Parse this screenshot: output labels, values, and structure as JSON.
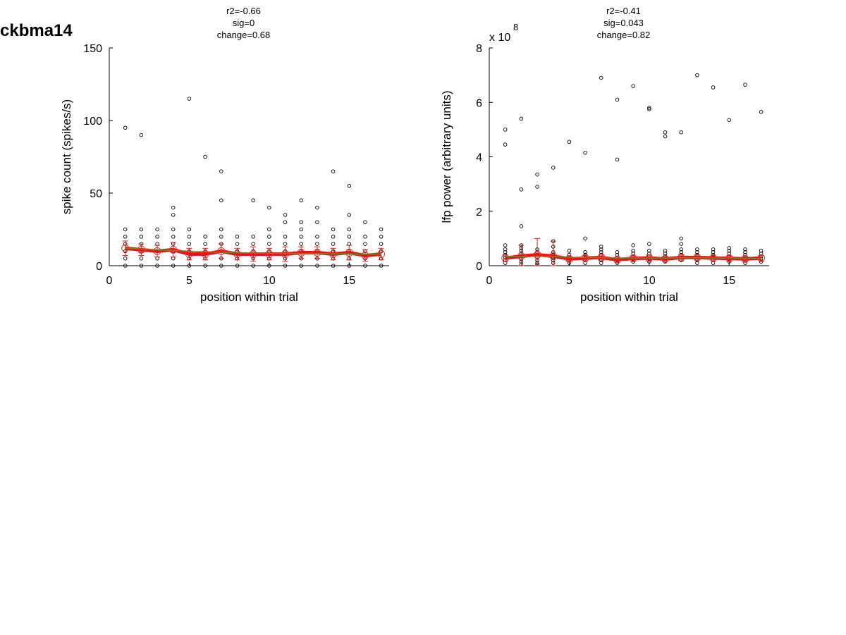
{
  "figure_title": "ckbma14",
  "chart_data": [
    {
      "type": "scatter",
      "stats": [
        "r2=-0.66",
        "sig=0",
        "change=0.68"
      ],
      "xlabel": "position within trial",
      "ylabel": "spike count (spikes/s)",
      "xlim": [
        0,
        17.5
      ],
      "ylim": [
        0,
        150
      ],
      "xticks": [
        0,
        5,
        10,
        15
      ],
      "yticks": [
        0,
        50,
        100,
        150
      ],
      "exponent_label": "",
      "scatter": [
        [
          1,
          95
        ],
        [
          1,
          25
        ],
        [
          1,
          20
        ],
        [
          1,
          15
        ],
        [
          1,
          10
        ],
        [
          1,
          5
        ],
        [
          1,
          0
        ],
        [
          2,
          90
        ],
        [
          2,
          25
        ],
        [
          2,
          20
        ],
        [
          2,
          15
        ],
        [
          2,
          10
        ],
        [
          2,
          5
        ],
        [
          2,
          0
        ],
        [
          3,
          25
        ],
        [
          3,
          20
        ],
        [
          3,
          15
        ],
        [
          3,
          10
        ],
        [
          3,
          5
        ],
        [
          3,
          0
        ],
        [
          4,
          40
        ],
        [
          4,
          35
        ],
        [
          4,
          25
        ],
        [
          4,
          20
        ],
        [
          4,
          15
        ],
        [
          4,
          10
        ],
        [
          4,
          5
        ],
        [
          4,
          0
        ],
        [
          5,
          115
        ],
        [
          5,
          25
        ],
        [
          5,
          20
        ],
        [
          5,
          15
        ],
        [
          5,
          10
        ],
        [
          5,
          5
        ],
        [
          5,
          0
        ],
        [
          6,
          75
        ],
        [
          6,
          20
        ],
        [
          6,
          15
        ],
        [
          6,
          10
        ],
        [
          6,
          5
        ],
        [
          6,
          0
        ],
        [
          7,
          65
        ],
        [
          7,
          45
        ],
        [
          7,
          25
        ],
        [
          7,
          20
        ],
        [
          7,
          15
        ],
        [
          7,
          10
        ],
        [
          7,
          5
        ],
        [
          7,
          0
        ],
        [
          8,
          20
        ],
        [
          8,
          15
        ],
        [
          8,
          10
        ],
        [
          8,
          5
        ],
        [
          8,
          0
        ],
        [
          9,
          45
        ],
        [
          9,
          20
        ],
        [
          9,
          15
        ],
        [
          9,
          10
        ],
        [
          9,
          5
        ],
        [
          9,
          0
        ],
        [
          10,
          40
        ],
        [
          10,
          25
        ],
        [
          10,
          20
        ],
        [
          10,
          15
        ],
        [
          10,
          10
        ],
        [
          10,
          5
        ],
        [
          10,
          0
        ],
        [
          11,
          35
        ],
        [
          11,
          30
        ],
        [
          11,
          20
        ],
        [
          11,
          15
        ],
        [
          11,
          10
        ],
        [
          11,
          5
        ],
        [
          11,
          0
        ],
        [
          12,
          45
        ],
        [
          12,
          30
        ],
        [
          12,
          25
        ],
        [
          12,
          20
        ],
        [
          12,
          15
        ],
        [
          12,
          10
        ],
        [
          12,
          5
        ],
        [
          12,
          0
        ],
        [
          13,
          40
        ],
        [
          13,
          30
        ],
        [
          13,
          20
        ],
        [
          13,
          15
        ],
        [
          13,
          10
        ],
        [
          13,
          5
        ],
        [
          13,
          0
        ],
        [
          14,
          65
        ],
        [
          14,
          25
        ],
        [
          14,
          20
        ],
        [
          14,
          15
        ],
        [
          14,
          10
        ],
        [
          14,
          5
        ],
        [
          14,
          0
        ],
        [
          15,
          55
        ],
        [
          15,
          35
        ],
        [
          15,
          25
        ],
        [
          15,
          20
        ],
        [
          15,
          15
        ],
        [
          15,
          10
        ],
        [
          15,
          5
        ],
        [
          15,
          0
        ],
        [
          16,
          30
        ],
        [
          16,
          20
        ],
        [
          16,
          15
        ],
        [
          16,
          10
        ],
        [
          16,
          5
        ],
        [
          16,
          0
        ],
        [
          17,
          25
        ],
        [
          17,
          20
        ],
        [
          17,
          15
        ],
        [
          17,
          10
        ],
        [
          17,
          5
        ],
        [
          17,
          0
        ]
      ],
      "x": [
        1,
        2,
        3,
        4,
        5,
        6,
        7,
        8,
        9,
        10,
        11,
        12,
        13,
        14,
        15,
        16,
        17
      ],
      "mean": [
        12,
        11,
        10,
        11,
        8,
        8,
        10,
        8,
        8,
        8,
        8,
        9,
        9,
        8,
        9,
        7,
        8
      ],
      "err": [
        5,
        4,
        4,
        5,
        4,
        4,
        5,
        4,
        5,
        4,
        5,
        4,
        4,
        4,
        5,
        4,
        4
      ],
      "fit": [
        12.2,
        11.6,
        11.0,
        10.5,
        10.0,
        9.6,
        9.3,
        9.0,
        8.8,
        8.6,
        8.5,
        8.4,
        8.3,
        8.2,
        8.1,
        8.0,
        8.0
      ]
    },
    {
      "type": "scatter",
      "stats": [
        "r2=-0.41",
        "sig=0.043",
        "change=0.82"
      ],
      "xlabel": "position within trial",
      "ylabel": "lfp power (arbitrary units)",
      "xlim": [
        0,
        17.5
      ],
      "ylim": [
        0,
        8
      ],
      "xticks": [
        0,
        5,
        10,
        15
      ],
      "yticks": [
        0,
        2,
        4,
        6,
        8
      ],
      "exponent_label": "x 10",
      "exponent_power": "8",
      "scatter": [
        [
          1,
          5.0
        ],
        [
          1,
          4.45
        ],
        [
          1,
          0.75
        ],
        [
          1,
          0.6
        ],
        [
          1,
          0.5
        ],
        [
          1,
          0.4
        ],
        [
          1,
          0.3
        ],
        [
          1,
          0.2
        ],
        [
          1,
          0.1
        ],
        [
          2,
          5.4
        ],
        [
          2,
          2.8
        ],
        [
          2,
          1.45
        ],
        [
          2,
          0.75
        ],
        [
          2,
          0.65
        ],
        [
          2,
          0.55
        ],
        [
          2,
          0.45
        ],
        [
          2,
          0.35
        ],
        [
          2,
          0.25
        ],
        [
          2,
          0.15
        ],
        [
          2,
          0.05
        ],
        [
          3,
          3.35
        ],
        [
          3,
          2.9
        ],
        [
          3,
          0.6
        ],
        [
          3,
          0.5
        ],
        [
          3,
          0.4
        ],
        [
          3,
          0.3
        ],
        [
          3,
          0.2
        ],
        [
          3,
          0.1
        ],
        [
          3,
          0.05
        ],
        [
          4,
          3.6
        ],
        [
          4,
          0.9
        ],
        [
          4,
          0.7
        ],
        [
          4,
          0.5
        ],
        [
          4,
          0.4
        ],
        [
          4,
          0.3
        ],
        [
          4,
          0.2
        ],
        [
          4,
          0.1
        ],
        [
          5,
          4.55
        ],
        [
          5,
          0.55
        ],
        [
          5,
          0.4
        ],
        [
          5,
          0.3
        ],
        [
          5,
          0.2
        ],
        [
          5,
          0.1
        ],
        [
          6,
          4.15
        ],
        [
          6,
          1.0
        ],
        [
          6,
          0.5
        ],
        [
          6,
          0.4
        ],
        [
          6,
          0.3
        ],
        [
          6,
          0.2
        ],
        [
          6,
          0.1
        ],
        [
          7,
          6.9
        ],
        [
          7,
          0.7
        ],
        [
          7,
          0.6
        ],
        [
          7,
          0.5
        ],
        [
          7,
          0.4
        ],
        [
          7,
          0.3
        ],
        [
          7,
          0.2
        ],
        [
          7,
          0.1
        ],
        [
          8,
          6.1
        ],
        [
          8,
          3.9
        ],
        [
          8,
          0.5
        ],
        [
          8,
          0.4
        ],
        [
          8,
          0.3
        ],
        [
          8,
          0.2
        ],
        [
          8,
          0.1
        ],
        [
          9,
          6.6
        ],
        [
          9,
          0.75
        ],
        [
          9,
          0.55
        ],
        [
          9,
          0.45
        ],
        [
          9,
          0.35
        ],
        [
          9,
          0.25
        ],
        [
          9,
          0.15
        ],
        [
          10,
          5.8
        ],
        [
          10,
          5.75
        ],
        [
          10,
          0.8
        ],
        [
          10,
          0.55
        ],
        [
          10,
          0.45
        ],
        [
          10,
          0.35
        ],
        [
          10,
          0.25
        ],
        [
          10,
          0.15
        ],
        [
          11,
          4.9
        ],
        [
          11,
          4.75
        ],
        [
          11,
          0.55
        ],
        [
          11,
          0.45
        ],
        [
          11,
          0.35
        ],
        [
          11,
          0.25
        ],
        [
          11,
          0.15
        ],
        [
          12,
          4.9
        ],
        [
          12,
          1.0
        ],
        [
          12,
          0.8
        ],
        [
          12,
          0.6
        ],
        [
          12,
          0.5
        ],
        [
          12,
          0.4
        ],
        [
          12,
          0.3
        ],
        [
          12,
          0.2
        ],
        [
          13,
          7.0
        ],
        [
          13,
          0.6
        ],
        [
          13,
          0.5
        ],
        [
          13,
          0.4
        ],
        [
          13,
          0.3
        ],
        [
          13,
          0.2
        ],
        [
          13,
          0.1
        ],
        [
          14,
          6.55
        ],
        [
          14,
          0.6
        ],
        [
          14,
          0.5
        ],
        [
          14,
          0.4
        ],
        [
          14,
          0.3
        ],
        [
          14,
          0.2
        ],
        [
          14,
          0.1
        ],
        [
          15,
          5.35
        ],
        [
          15,
          0.65
        ],
        [
          15,
          0.55
        ],
        [
          15,
          0.45
        ],
        [
          15,
          0.35
        ],
        [
          15,
          0.25
        ],
        [
          15,
          0.15
        ],
        [
          16,
          6.65
        ],
        [
          16,
          0.6
        ],
        [
          16,
          0.5
        ],
        [
          16,
          0.4
        ],
        [
          16,
          0.3
        ],
        [
          16,
          0.2
        ],
        [
          16,
          0.1
        ],
        [
          17,
          5.65
        ],
        [
          17,
          0.55
        ],
        [
          17,
          0.45
        ],
        [
          17,
          0.35
        ],
        [
          17,
          0.25
        ],
        [
          17,
          0.15
        ]
      ],
      "x": [
        1,
        2,
        3,
        4,
        5,
        6,
        7,
        8,
        9,
        10,
        11,
        12,
        13,
        14,
        15,
        16,
        17
      ],
      "mean": [
        0.28,
        0.35,
        0.4,
        0.35,
        0.25,
        0.28,
        0.3,
        0.22,
        0.27,
        0.28,
        0.25,
        0.3,
        0.3,
        0.28,
        0.27,
        0.25,
        0.28
      ],
      "err": [
        0.12,
        0.4,
        0.6,
        0.55,
        0.1,
        0.1,
        0.12,
        0.1,
        0.1,
        0.12,
        0.1,
        0.12,
        0.1,
        0.1,
        0.1,
        0.1,
        0.1
      ],
      "fit": [
        0.33,
        0.34,
        0.35,
        0.34,
        0.31,
        0.3,
        0.3,
        0.28,
        0.28,
        0.28,
        0.28,
        0.29,
        0.29,
        0.28,
        0.28,
        0.27,
        0.27
      ]
    }
  ]
}
